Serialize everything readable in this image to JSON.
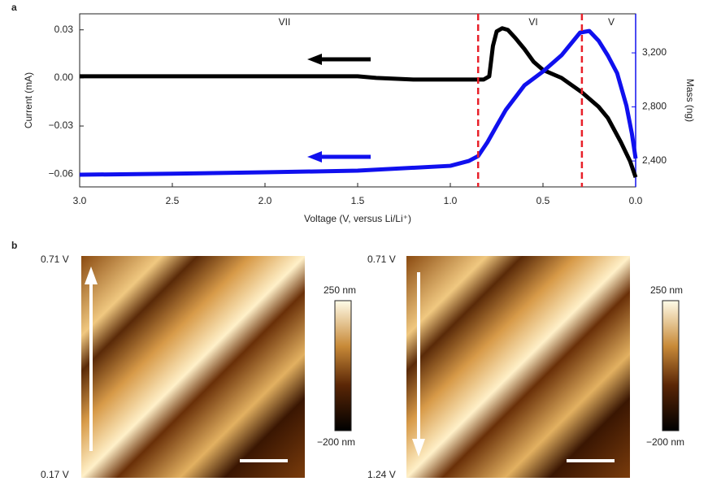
{
  "chart_data": {
    "type": "line",
    "panel_label": "a",
    "x_label": "Voltage (V, versus Li/Li⁺)",
    "y_label": "Current (mA)",
    "y2_label": "Mass (ng)",
    "xlim": [
      3.0,
      0.0
    ],
    "xticks": [
      {
        "value": 3,
        "label": "3.0"
      },
      2.5,
      {
        "value": 2,
        "label": "2.0"
      },
      1.5,
      {
        "value": 1,
        "label": "1.0"
      },
      0.5,
      {
        "value": 0,
        "label": "0.0"
      }
    ],
    "ylim": [
      -0.068,
      0.04
    ],
    "yticks": [
      0.03,
      {
        "value": 0,
        "label": "0.00"
      },
      {
        "value": -0.03,
        "label": "−0.03"
      },
      {
        "value": -0.06,
        "label": "−0.06"
      }
    ],
    "y2lim": [
      2208,
      3489
    ],
    "y2ticks": [
      {
        "value": 2400,
        "label": "2,400"
      },
      {
        "value": 2800,
        "label": "2,800"
      },
      {
        "value": 3200,
        "label": "3,200"
      }
    ],
    "y2_color": "#1010ee",
    "vlines": [
      0.85,
      0.29
    ],
    "vline_color": "#e8202a",
    "annotations": [
      "VII",
      "VI",
      "V"
    ],
    "series": [
      {
        "name": "Current",
        "color": "#000000",
        "x": [
          3.0,
          2.5,
          2.0,
          1.5,
          1.4,
          1.2,
          1.0,
          0.9,
          0.82,
          0.79,
          0.77,
          0.75,
          0.72,
          0.69,
          0.65,
          0.6,
          0.55,
          0.5,
          0.4,
          0.29,
          0.2,
          0.15,
          0.08,
          0.03,
          0.0
        ],
        "values": [
          0.001,
          0.001,
          0.001,
          0.001,
          0.0,
          -0.001,
          -0.001,
          -0.001,
          -0.001,
          0.001,
          0.02,
          0.029,
          0.031,
          0.03,
          0.025,
          0.018,
          0.01,
          0.005,
          0.0,
          -0.009,
          -0.018,
          -0.025,
          -0.04,
          -0.052,
          -0.062
        ]
      },
      {
        "name": "Mass",
        "color": "#1010ee",
        "axis": "y2",
        "x": [
          3.0,
          2.5,
          2.0,
          1.5,
          1.0,
          0.9,
          0.85,
          0.8,
          0.75,
          0.7,
          0.6,
          0.5,
          0.4,
          0.3,
          0.25,
          0.2,
          0.15,
          0.1,
          0.05,
          0.02,
          0.0
        ],
        "values": [
          2298,
          2306,
          2316,
          2328,
          2364,
          2400,
          2436,
          2538,
          2660,
          2779,
          2960,
          3062,
          3182,
          3350,
          3362,
          3290,
          3180,
          3050,
          2810,
          2600,
          2418
        ]
      }
    ]
  },
  "panel_b": {
    "panel_label": "b",
    "images": [
      {
        "top_label": "0.71 V",
        "bottom_label": "0.17 V",
        "scale_max": "250 nm",
        "scale_min": "−200 nm"
      },
      {
        "top_label": "0.71 V",
        "bottom_label": "1.24 V",
        "scale_max": "250 nm",
        "scale_min": "−200 nm"
      }
    ]
  }
}
